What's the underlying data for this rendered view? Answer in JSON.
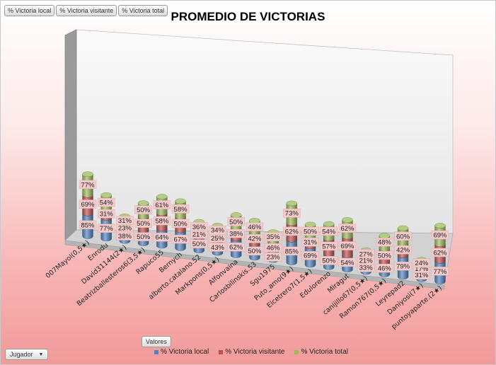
{
  "field_buttons": [
    "% Victoria local",
    "% Victoria visitante",
    "% Victoria total"
  ],
  "valores_label": "Valores",
  "jugador_label": "Jugador",
  "colors": {
    "local": "#4f81bd",
    "visitante": "#c0504d",
    "total": "#9bbb59"
  },
  "chart_data": {
    "type": "bar",
    "stacked": true,
    "three_d": true,
    "title": "PROMEDIO DE VICTORIAS",
    "categories": [
      "007Mayol(0,5★)",
      "Enrodu",
      "David31144(2★)",
      "Beatrizballesteros6(3,5★)",
      "Rapuco55",
      "Bernych",
      "alberto.catalano.52",
      "Markpons(0,5★)",
      "Alfonvaina",
      "Carlosbilinskis.53",
      "Sgu1975",
      "Puto_amo(9★)",
      "Elcetrero7(1,5★)",
      "Edulorenzo",
      "Miragut",
      "canijillo67(0,5★)",
      "Ramon767(0,5★)",
      "Leyrepad2",
      "Daniyosi(7★)",
      "puntoyaparte.(2★)"
    ],
    "series": [
      {
        "name": "% Victoria local",
        "values": [
          85,
          77,
          38,
          50,
          64,
          67,
          50,
          43,
          62,
          50,
          23,
          85,
          69,
          50,
          54,
          33,
          46,
          79,
          31,
          77
        ]
      },
      {
        "name": "% Victoria visitante",
        "values": [
          69,
          31,
          23,
          50,
          58,
          50,
          21,
          25,
          38,
          42,
          46,
          62,
          31,
          57,
          69,
          21,
          50,
          42,
          17,
          62
        ]
      },
      {
        "name": "% Victoria total",
        "values": [
          77,
          54,
          31,
          50,
          61,
          58,
          36,
          34,
          50,
          46,
          35,
          73,
          50,
          54,
          62,
          27,
          48,
          60,
          24,
          69
        ]
      }
    ],
    "value_format": "percent",
    "legend": "bottom",
    "grid": false
  }
}
